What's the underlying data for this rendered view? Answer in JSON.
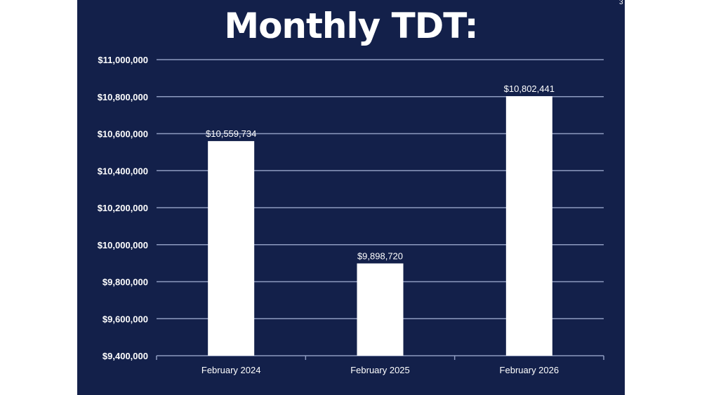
{
  "slide": {
    "page_number": "3"
  },
  "chart_data": {
    "type": "bar",
    "title": "Monthly TDT:",
    "categories": [
      "February 2024",
      "February 2025",
      "February 2026"
    ],
    "values": [
      10559734,
      9898720,
      10802441
    ],
    "data_labels": [
      "$10,559,734",
      "$9,898,720",
      "$10,802,441"
    ],
    "ylim": [
      9400000,
      11000000
    ],
    "yticks": [
      9400000,
      9600000,
      9800000,
      10000000,
      10200000,
      10400000,
      10600000,
      10800000,
      11000000
    ],
    "ytick_labels": [
      "$9,400,000",
      "$9,600,000",
      "$9,800,000",
      "$10,000,000",
      "$10,200,000",
      "$10,400,000",
      "$10,600,000",
      "$10,800,000",
      "$11,000,000"
    ],
    "grid": true,
    "colors": {
      "background": "#13204a",
      "bar": "#ffffff",
      "grid": "#8e9bc0",
      "text": "#ffffff"
    }
  }
}
